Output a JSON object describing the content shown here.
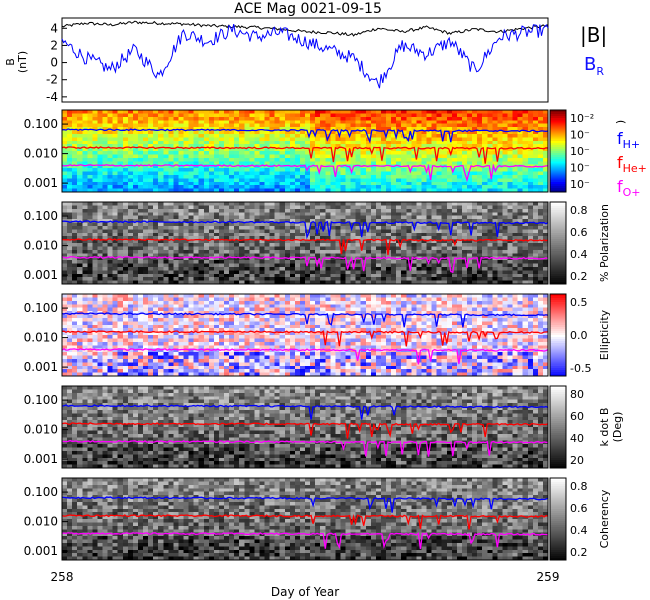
{
  "title": "ACE Mag 0021-09-15",
  "xlabel": "Day of Year",
  "x_ticks": [
    "258",
    "259"
  ],
  "chart_data": [
    {
      "type": "line",
      "panel": "magnetic-field",
      "ylabel": "B (nT)",
      "y_ticks": [
        "4",
        "2",
        "0",
        "-2",
        "-4"
      ],
      "ylim": [
        -4.6,
        5.2
      ],
      "xlim": [
        258.0,
        259.0
      ],
      "legend": [
        "|B|",
        "B_R"
      ],
      "series": [
        {
          "name": "|B|",
          "color": "#000000",
          "x": [
            258.0,
            258.05,
            258.1,
            258.15,
            258.2,
            258.25,
            258.3,
            258.35,
            258.4,
            258.45,
            258.5,
            258.55,
            258.6,
            258.65,
            258.7,
            258.75,
            258.8,
            258.85,
            258.9,
            258.95,
            259.0
          ],
          "values": [
            4.2,
            4.6,
            4.4,
            4.7,
            4.6,
            4.5,
            4.3,
            4.2,
            4.1,
            3.9,
            3.6,
            3.5,
            3.2,
            4.0,
            3.6,
            4.1,
            3.4,
            3.9,
            3.6,
            4.0,
            4.3
          ]
        },
        {
          "name": "B_R",
          "color": "#0000ff",
          "x": [
            258.0,
            258.05,
            258.1,
            258.15,
            258.2,
            258.25,
            258.3,
            258.35,
            258.4,
            258.45,
            258.5,
            258.55,
            258.6,
            258.65,
            258.7,
            258.75,
            258.8,
            258.85,
            258.9,
            258.95,
            259.0
          ],
          "values": [
            2.5,
            0.5,
            -0.8,
            1.5,
            -1.5,
            3.5,
            2.5,
            3.8,
            3.0,
            3.5,
            2.5,
            1.5,
            0.5,
            -2.5,
            2.0,
            1.0,
            2.5,
            -1.0,
            3.0,
            3.5,
            3.8
          ]
        }
      ]
    },
    {
      "type": "heatmap",
      "panel": "power-spectrum",
      "y_ticks": [
        "0.100",
        "0.010",
        "0.001"
      ],
      "colorbar_ticks": [
        "10⁻²",
        "10⁻",
        "10⁻",
        "10⁻",
        "10⁻"
      ],
      "colorbar_label": ")",
      "legend": [
        "f_H+",
        "f_He+",
        "f_O+"
      ],
      "series": [
        {
          "name": "f_H+",
          "color": "#0000ff",
          "values_hz_start_end": [
            0.065,
            0.058
          ]
        },
        {
          "name": "f_He+",
          "color": "#ff0000",
          "values_hz_start_end": [
            0.016,
            0.015
          ]
        },
        {
          "name": "f_O+",
          "color": "#ff00ff",
          "values_hz_start_end": [
            0.004,
            0.0037
          ]
        }
      ]
    },
    {
      "type": "heatmap",
      "panel": "polarization",
      "y_ticks": [
        "0.100",
        "0.010",
        "0.001"
      ],
      "colorbar_ticks": [
        "0.8",
        "0.6",
        "0.4",
        "0.2"
      ],
      "colorbar_label": "% Polarization"
    },
    {
      "type": "heatmap",
      "panel": "ellipticity",
      "y_ticks": [
        "0.100",
        "0.010",
        "0.001"
      ],
      "colorbar_ticks": [
        "0.5",
        "0.0",
        "-0.5"
      ],
      "colorbar_label": "Ellipticity"
    },
    {
      "type": "heatmap",
      "panel": "k-dot-b",
      "y_ticks": [
        "0.100",
        "0.010",
        "0.001"
      ],
      "colorbar_ticks": [
        "80",
        "60",
        "40",
        "20"
      ],
      "colorbar_label": "k dot B",
      "colorbar_label2": "(Deg)"
    },
    {
      "type": "heatmap",
      "panel": "coherency",
      "y_ticks": [
        "0.100",
        "0.010",
        "0.001"
      ],
      "colorbar_ticks": [
        "0.8",
        "0.6",
        "0.4",
        "0.2"
      ],
      "colorbar_label": "Coherency"
    }
  ],
  "colors": {
    "h_plus": "#0000ff",
    "he_plus": "#ff0000",
    "o_plus": "#ff00ff",
    "field_magnitude": "#000000"
  }
}
